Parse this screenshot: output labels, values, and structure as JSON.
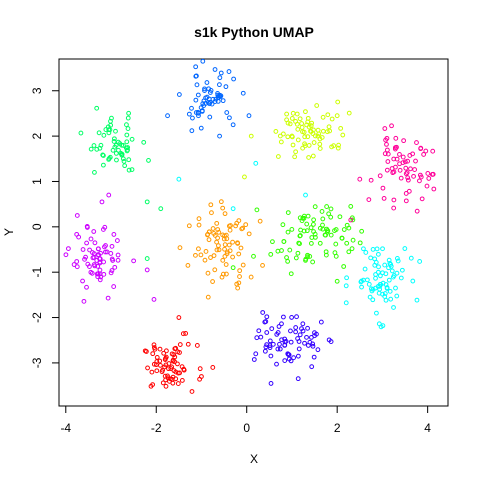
{
  "chart_data": {
    "type": "scatter",
    "title": "s1k Python UMAP",
    "xlabel": "X",
    "ylabel": "Y",
    "xlim": [
      -4.15,
      4.45
    ],
    "ylim": [
      -3.95,
      3.7
    ],
    "x_ticks": [
      -4,
      -2,
      0,
      2,
      4
    ],
    "y_ticks": [
      -3,
      -2,
      -1,
      0,
      1,
      2,
      3
    ],
    "x_tick_labels": [
      "-4",
      "-2",
      "0",
      "2",
      "4"
    ],
    "y_tick_labels": [
      "-3",
      "-2",
      "-1",
      "0",
      "1",
      "2",
      "3"
    ],
    "grid": false,
    "legend": "none",
    "marker": "open-circle",
    "clusters": [
      {
        "color": "#ff0000",
        "center": [
          -1.7,
          -3.1
        ],
        "spread": [
          0.3,
          0.25
        ],
        "count": 70,
        "outliers": [
          [
            -1.5,
            -2.0
          ],
          [
            -1.35,
            -2.35
          ],
          [
            -0.75,
            -3.1
          ],
          [
            -2.05,
            -2.6
          ]
        ]
      },
      {
        "color": "#ff9900",
        "center": [
          -0.5,
          -0.4
        ],
        "spread": [
          0.3,
          0.45
        ],
        "count": 75,
        "outliers": [
          [
            -0.85,
            -1.55
          ],
          [
            -1.3,
            -0.85
          ],
          [
            -0.2,
            -1.35
          ],
          [
            0.35,
            -0.85
          ]
        ]
      },
      {
        "color": "#ccff00",
        "center": [
          1.45,
          2.15
        ],
        "spread": [
          0.4,
          0.3
        ],
        "count": 70,
        "outliers": [
          [
            0.1,
            2.0
          ],
          [
            0.7,
            1.55
          ],
          [
            2.0,
            2.45
          ],
          [
            -0.05,
            1.1
          ]
        ]
      },
      {
        "color": "#33ff00",
        "center": [
          1.45,
          -0.2
        ],
        "spread": [
          0.45,
          0.35
        ],
        "count": 85,
        "outliers": [
          [
            0.15,
            -0.65
          ],
          [
            2.3,
            0.45
          ],
          [
            2.0,
            -1.2
          ],
          [
            -0.3,
            -0.9
          ]
        ]
      },
      {
        "color": "#00ff66",
        "center": [
          -2.95,
          1.8
        ],
        "spread": [
          0.3,
          0.3
        ],
        "count": 60,
        "outliers": [
          [
            -2.2,
            0.55
          ],
          [
            -2.6,
            1.25
          ],
          [
            -1.9,
            0.4
          ],
          [
            -2.2,
            -0.7
          ]
        ]
      },
      {
        "color": "#00ffff",
        "center": [
          2.95,
          -1.15
        ],
        "spread": [
          0.3,
          0.4
        ],
        "count": 75,
        "outliers": [
          [
            1.3,
            0.7
          ],
          [
            2.2,
            -1.3
          ],
          [
            0.2,
            1.4
          ],
          [
            -0.3,
            0.4
          ],
          [
            -1.5,
            1.05
          ]
        ]
      },
      {
        "color": "#0066ff",
        "center": [
          -0.85,
          2.85
        ],
        "spread": [
          0.3,
          0.3
        ],
        "count": 60,
        "outliers": [
          [
            -1.75,
            2.45
          ],
          [
            0.05,
            2.45
          ],
          [
            -0.3,
            2.25
          ],
          [
            -0.6,
            2.0
          ]
        ]
      },
      {
        "color": "#3300ff",
        "center": [
          0.95,
          -2.55
        ],
        "spread": [
          0.35,
          0.3
        ],
        "count": 70,
        "outliers": [
          [
            0.4,
            -2.1
          ],
          [
            1.5,
            -2.4
          ],
          [
            0.2,
            -2.8
          ],
          [
            1.65,
            -2.1
          ]
        ]
      },
      {
        "color": "#cc00ff",
        "center": [
          -3.3,
          -0.75
        ],
        "spread": [
          0.3,
          0.35
        ],
        "count": 70,
        "outliers": [
          [
            -2.2,
            -0.95
          ],
          [
            -3.2,
            0.55
          ],
          [
            -2.05,
            -1.6
          ],
          [
            -2.5,
            -0.75
          ],
          [
            -3.05,
            0.7
          ]
        ]
      },
      {
        "color": "#ff0099",
        "center": [
          3.4,
          1.25
        ],
        "spread": [
          0.35,
          0.35
        ],
        "count": 65,
        "outliers": [
          [
            2.7,
            0.6
          ],
          [
            3.1,
            1.95
          ],
          [
            2.5,
            1.05
          ],
          [
            2.3,
            0.15
          ]
        ]
      }
    ]
  }
}
